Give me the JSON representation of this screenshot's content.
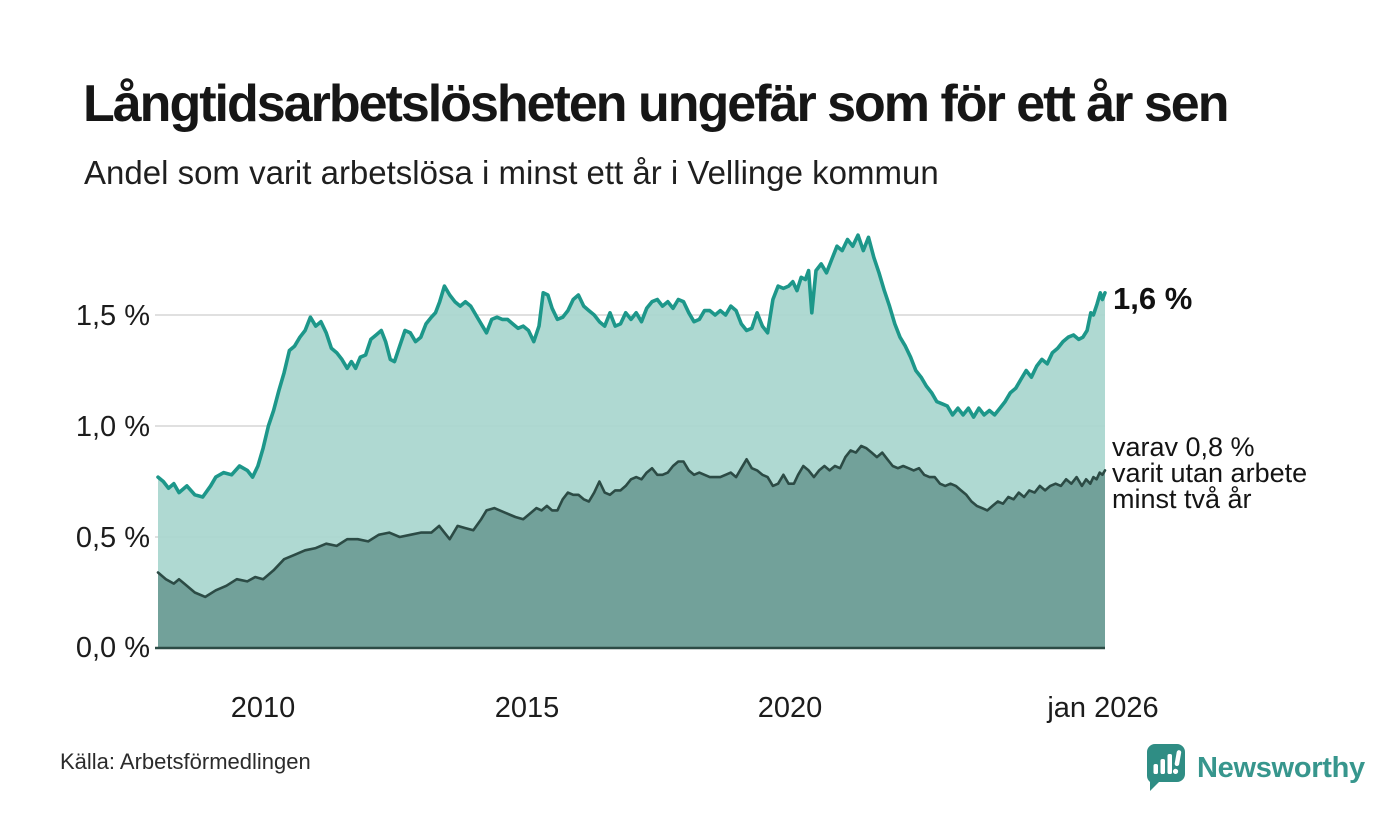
{
  "header": {
    "title": "Långtidsarbetslösheten ungefär som för ett år sen",
    "subtitle": "Andel som varit arbetslösa i minst ett år i Vellinge kommun"
  },
  "colors": {
    "total_line": "#1d978a",
    "total_fill": "#a9d6cf",
    "twoyear_line": "#2c4b45",
    "twoyear_fill": "#6f9e97",
    "gridline": "#d6d6d6",
    "baseline": "#2c4b45",
    "brand_teal": "#2f8d84"
  },
  "annotations": {
    "total_end_label": "1,6 %",
    "twoyear_end_lines": [
      "varav 0,8 %",
      "varit utan arbete",
      "minst två år"
    ]
  },
  "footer": {
    "source": "Källa: Arbetsförmedlingen",
    "brand": "Newsworthy"
  },
  "chart_data": {
    "type": "area",
    "title": "Långtidsarbetslösheten ungefär som för ett år sen",
    "subtitle": "Andel som varit arbetslösa i minst ett år i Vellinge kommun",
    "unit": "%",
    "grid": "horizontal",
    "legend_position": "end-of-line-labels",
    "x_range": [
      2008.0,
      2026.02
    ],
    "ylim": [
      0,
      1.9
    ],
    "y_axis": {
      "ticks": [
        {
          "label": "0,0 %",
          "value": 0.0
        },
        {
          "label": "0,5 %",
          "value": 0.5
        },
        {
          "label": "1,0 %",
          "value": 1.0
        },
        {
          "label": "1,5 %",
          "value": 1.5
        }
      ]
    },
    "x_axis": {
      "ticks": [
        {
          "label": "2010",
          "year": 2010
        },
        {
          "label": "2015",
          "year": 2015
        },
        {
          "label": "2020",
          "year": 2020
        },
        {
          "label": "jan 2026",
          "year": 2026
        }
      ]
    },
    "series": [
      {
        "name": "Andel som varit arbetslösa i minst ett år",
        "end_label": "1,6 %",
        "end_value": 1.6,
        "x": [
          2008.0,
          2008.1,
          2008.2,
          2008.3,
          2008.4,
          2008.55,
          2008.7,
          2008.85,
          2009.0,
          2009.1,
          2009.25,
          2009.4,
          2009.55,
          2009.7,
          2009.8,
          2009.9,
          2010.0,
          2010.1,
          2010.2,
          2010.3,
          2010.4,
          2010.5,
          2010.6,
          2010.7,
          2010.8,
          2010.9,
          2011.0,
          2011.1,
          2011.2,
          2011.3,
          2011.4,
          2011.5,
          2011.6,
          2011.68,
          2011.76,
          2011.85,
          2011.95,
          2012.05,
          2012.15,
          2012.25,
          2012.33,
          2012.42,
          2012.5,
          2012.6,
          2012.7,
          2012.8,
          2012.9,
          2013.0,
          2013.1,
          2013.2,
          2013.28,
          2013.36,
          2013.45,
          2013.55,
          2013.65,
          2013.75,
          2013.85,
          2013.95,
          2014.05,
          2014.15,
          2014.25,
          2014.35,
          2014.45,
          2014.55,
          2014.65,
          2014.75,
          2014.85,
          2014.95,
          2015.05,
          2015.15,
          2015.25,
          2015.33,
          2015.42,
          2015.5,
          2015.6,
          2015.7,
          2015.8,
          2015.9,
          2016.0,
          2016.1,
          2016.2,
          2016.3,
          2016.4,
          2016.5,
          2016.6,
          2016.7,
          2016.8,
          2016.9,
          2017.0,
          2017.1,
          2017.2,
          2017.3,
          2017.4,
          2017.5,
          2017.6,
          2017.7,
          2017.8,
          2017.9,
          2018.0,
          2018.1,
          2018.2,
          2018.3,
          2018.4,
          2018.5,
          2018.6,
          2018.7,
          2018.8,
          2018.9,
          2019.0,
          2019.1,
          2019.2,
          2019.3,
          2019.4,
          2019.5,
          2019.6,
          2019.7,
          2019.8,
          2019.9,
          2020.0,
          2020.08,
          2020.16,
          2020.24,
          2020.32,
          2020.38,
          2020.44,
          2020.52,
          2020.62,
          2020.72,
          2020.82,
          2020.92,
          2021.02,
          2021.12,
          2021.22,
          2021.32,
          2021.42,
          2021.52,
          2021.62,
          2021.72,
          2021.82,
          2021.92,
          2022.02,
          2022.12,
          2022.22,
          2022.32,
          2022.42,
          2022.52,
          2022.62,
          2022.72,
          2022.82,
          2022.92,
          2023.02,
          2023.12,
          2023.22,
          2023.32,
          2023.42,
          2023.52,
          2023.62,
          2023.72,
          2023.82,
          2023.92,
          2024.02,
          2024.12,
          2024.22,
          2024.32,
          2024.42,
          2024.52,
          2024.62,
          2024.72,
          2024.82,
          2024.92,
          2025.02,
          2025.12,
          2025.22,
          2025.32,
          2025.42,
          2025.52,
          2025.6,
          2025.68,
          2025.75,
          2025.8,
          2025.87,
          2025.93,
          2025.97,
          2026.02
        ],
        "values": [
          0.77,
          0.75,
          0.72,
          0.74,
          0.7,
          0.73,
          0.69,
          0.68,
          0.73,
          0.77,
          0.79,
          0.78,
          0.82,
          0.8,
          0.77,
          0.82,
          0.9,
          1.0,
          1.07,
          1.16,
          1.24,
          1.34,
          1.36,
          1.4,
          1.43,
          1.49,
          1.45,
          1.47,
          1.42,
          1.35,
          1.33,
          1.3,
          1.26,
          1.29,
          1.26,
          1.31,
          1.32,
          1.39,
          1.41,
          1.43,
          1.38,
          1.3,
          1.29,
          1.36,
          1.43,
          1.42,
          1.38,
          1.4,
          1.46,
          1.49,
          1.51,
          1.56,
          1.63,
          1.59,
          1.56,
          1.54,
          1.56,
          1.54,
          1.5,
          1.46,
          1.42,
          1.48,
          1.49,
          1.48,
          1.48,
          1.46,
          1.44,
          1.45,
          1.43,
          1.38,
          1.45,
          1.6,
          1.59,
          1.53,
          1.48,
          1.49,
          1.52,
          1.57,
          1.59,
          1.54,
          1.52,
          1.5,
          1.47,
          1.45,
          1.51,
          1.45,
          1.46,
          1.51,
          1.48,
          1.51,
          1.47,
          1.53,
          1.56,
          1.57,
          1.54,
          1.56,
          1.53,
          1.57,
          1.56,
          1.51,
          1.47,
          1.48,
          1.52,
          1.52,
          1.5,
          1.52,
          1.5,
          1.54,
          1.52,
          1.46,
          1.43,
          1.44,
          1.51,
          1.45,
          1.42,
          1.57,
          1.63,
          1.62,
          1.63,
          1.65,
          1.61,
          1.67,
          1.66,
          1.7,
          1.51,
          1.7,
          1.73,
          1.69,
          1.75,
          1.81,
          1.79,
          1.84,
          1.81,
          1.86,
          1.79,
          1.85,
          1.76,
          1.69,
          1.61,
          1.54,
          1.46,
          1.4,
          1.36,
          1.31,
          1.25,
          1.22,
          1.18,
          1.15,
          1.11,
          1.1,
          1.09,
          1.05,
          1.08,
          1.05,
          1.08,
          1.04,
          1.08,
          1.05,
          1.07,
          1.05,
          1.08,
          1.11,
          1.15,
          1.17,
          1.21,
          1.25,
          1.22,
          1.27,
          1.3,
          1.28,
          1.33,
          1.35,
          1.38,
          1.4,
          1.41,
          1.39,
          1.4,
          1.43,
          1.51,
          1.5,
          1.55,
          1.6,
          1.57,
          1.6
        ]
      },
      {
        "name": "varav utan arbete minst två år",
        "end_label": "varav 0,8 % varit utan arbete minst två år",
        "end_value": 0.8,
        "x": [
          2008.0,
          2008.15,
          2008.3,
          2008.4,
          2008.5,
          2008.7,
          2008.9,
          2009.1,
          2009.3,
          2009.5,
          2009.7,
          2009.85,
          2010.0,
          2010.2,
          2010.4,
          2010.6,
          2010.8,
          2011.0,
          2011.2,
          2011.4,
          2011.6,
          2011.8,
          2012.0,
          2012.2,
          2012.4,
          2012.6,
          2012.8,
          2013.0,
          2013.2,
          2013.35,
          2013.45,
          2013.55,
          2013.7,
          2013.85,
          2014.0,
          2014.15,
          2014.25,
          2014.4,
          2014.6,
          2014.8,
          2014.95,
          2015.1,
          2015.2,
          2015.3,
          2015.4,
          2015.5,
          2015.6,
          2015.7,
          2015.8,
          2015.9,
          2016.0,
          2016.1,
          2016.2,
          2016.3,
          2016.4,
          2016.5,
          2016.6,
          2016.7,
          2016.8,
          2016.9,
          2017.0,
          2017.1,
          2017.2,
          2017.3,
          2017.4,
          2017.5,
          2017.6,
          2017.7,
          2017.8,
          2017.9,
          2018.0,
          2018.1,
          2018.2,
          2018.3,
          2018.4,
          2018.5,
          2018.6,
          2018.7,
          2018.8,
          2018.9,
          2019.0,
          2019.1,
          2019.2,
          2019.3,
          2019.4,
          2019.5,
          2019.6,
          2019.7,
          2019.8,
          2019.9,
          2020.0,
          2020.1,
          2020.18,
          2020.28,
          2020.38,
          2020.48,
          2020.58,
          2020.68,
          2020.78,
          2020.88,
          2020.98,
          2021.08,
          2021.18,
          2021.28,
          2021.38,
          2021.48,
          2021.58,
          2021.68,
          2021.78,
          2021.88,
          2021.98,
          2022.08,
          2022.18,
          2022.28,
          2022.38,
          2022.48,
          2022.58,
          2022.68,
          2022.78,
          2022.88,
          2022.98,
          2023.08,
          2023.18,
          2023.28,
          2023.38,
          2023.48,
          2023.58,
          2023.68,
          2023.78,
          2023.88,
          2023.98,
          2024.08,
          2024.18,
          2024.28,
          2024.38,
          2024.48,
          2024.58,
          2024.68,
          2024.78,
          2024.88,
          2024.98,
          2025.08,
          2025.18,
          2025.28,
          2025.38,
          2025.48,
          2025.58,
          2025.66,
          2025.74,
          2025.8,
          2025.86,
          2025.92,
          2025.97,
          2026.02
        ],
        "values": [
          0.34,
          0.31,
          0.29,
          0.31,
          0.29,
          0.25,
          0.23,
          0.26,
          0.28,
          0.31,
          0.3,
          0.32,
          0.31,
          0.35,
          0.4,
          0.42,
          0.44,
          0.45,
          0.47,
          0.46,
          0.49,
          0.49,
          0.48,
          0.51,
          0.52,
          0.5,
          0.51,
          0.52,
          0.52,
          0.55,
          0.52,
          0.49,
          0.55,
          0.54,
          0.53,
          0.58,
          0.62,
          0.63,
          0.61,
          0.59,
          0.58,
          0.61,
          0.63,
          0.62,
          0.64,
          0.62,
          0.62,
          0.67,
          0.7,
          0.69,
          0.69,
          0.67,
          0.66,
          0.7,
          0.75,
          0.7,
          0.69,
          0.71,
          0.71,
          0.73,
          0.76,
          0.77,
          0.76,
          0.79,
          0.81,
          0.78,
          0.78,
          0.79,
          0.82,
          0.84,
          0.84,
          0.8,
          0.78,
          0.79,
          0.78,
          0.77,
          0.77,
          0.77,
          0.78,
          0.79,
          0.77,
          0.81,
          0.85,
          0.81,
          0.8,
          0.78,
          0.77,
          0.73,
          0.74,
          0.78,
          0.74,
          0.74,
          0.78,
          0.82,
          0.8,
          0.77,
          0.8,
          0.82,
          0.8,
          0.82,
          0.81,
          0.86,
          0.89,
          0.88,
          0.91,
          0.9,
          0.88,
          0.86,
          0.88,
          0.85,
          0.82,
          0.81,
          0.82,
          0.81,
          0.8,
          0.81,
          0.78,
          0.77,
          0.77,
          0.74,
          0.73,
          0.74,
          0.73,
          0.71,
          0.69,
          0.66,
          0.64,
          0.63,
          0.62,
          0.64,
          0.66,
          0.65,
          0.68,
          0.67,
          0.7,
          0.68,
          0.71,
          0.7,
          0.73,
          0.71,
          0.73,
          0.74,
          0.73,
          0.76,
          0.74,
          0.77,
          0.73,
          0.76,
          0.74,
          0.77,
          0.76,
          0.79,
          0.78,
          0.8
        ]
      }
    ]
  }
}
